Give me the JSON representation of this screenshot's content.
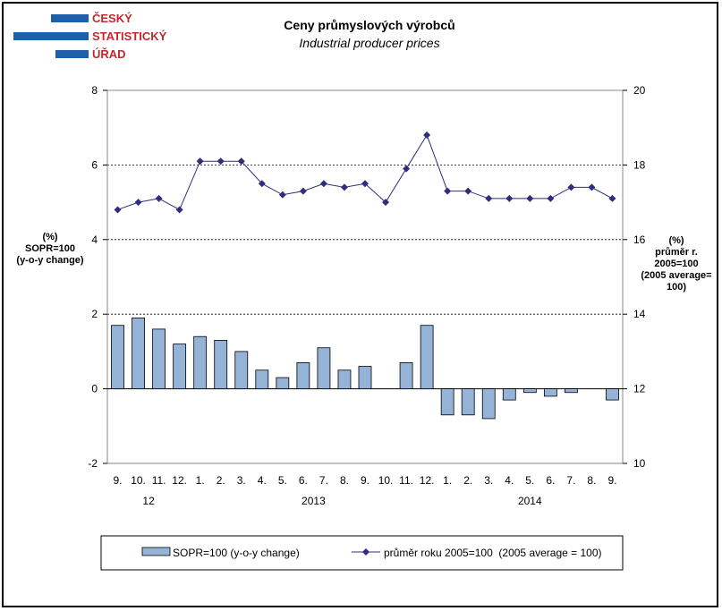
{
  "logo": {
    "line1": "ČESKÝ",
    "line2": "STATISTICKÝ",
    "line3": "ÚŘAD",
    "bar_color": "#1f5ea8",
    "text_color": "#c0282d"
  },
  "chart_data": {
    "type": "bar+line",
    "title": "Ceny průmyslových výrobců",
    "subtitle": "Industrial producer prices",
    "left_axis_label": [
      "(%)",
      "SOPR=100",
      "(y-o-y change)"
    ],
    "right_axis_label": [
      "(%)",
      "průměr r.",
      "2005=100",
      "(2005 average=",
      "100)"
    ],
    "categories": [
      "9.",
      "10.",
      "11.",
      "12.",
      "1.",
      "2.",
      "3.",
      "4.",
      "5.",
      "6.",
      "7.",
      "8.",
      "9.",
      "10.",
      "11.",
      "12.",
      "1.",
      "2.",
      "3.",
      "4.",
      "5.",
      "6.",
      "7.",
      "8.",
      "9."
    ],
    "year_labels": [
      {
        "label": "12",
        "at_index": 1.5
      },
      {
        "label": "2013",
        "at_index": 9.5
      },
      {
        "label": "2014",
        "at_index": 20
      }
    ],
    "left_axis": {
      "min": -2,
      "max": 8,
      "ticks": [
        -2,
        0,
        2,
        4,
        6,
        8
      ]
    },
    "right_axis": {
      "min": 10,
      "max": 20,
      "ticks": [
        10,
        12,
        14,
        16,
        18,
        20
      ]
    },
    "gridlines_dashed_at_left": [
      2,
      4,
      6
    ],
    "series": [
      {
        "name": "SOPR=100 (y-o-y change)",
        "kind": "bar",
        "axis": "left",
        "color": "#95b3d7",
        "values": [
          1.7,
          1.9,
          1.6,
          1.2,
          1.4,
          1.3,
          1.0,
          0.5,
          0.3,
          0.7,
          1.1,
          0.5,
          0.6,
          0.0,
          0.7,
          1.7,
          -0.7,
          -0.7,
          -0.8,
          -0.3,
          -0.1,
          -0.2,
          -0.1,
          0.0,
          -0.3
        ]
      },
      {
        "name": "průměr roku 2005=100  (2005 average = 100)",
        "kind": "line",
        "axis": "right",
        "color": "#2e2e7a",
        "values": [
          16.8,
          17.0,
          17.1,
          16.8,
          18.1,
          18.1,
          18.1,
          17.5,
          17.2,
          17.3,
          17.5,
          17.4,
          17.5,
          17.0,
          17.9,
          18.8,
          17.3,
          17.3,
          17.1,
          17.1,
          17.1,
          17.1,
          17.4,
          17.4,
          17.1
        ]
      }
    ],
    "legend_position": "bottom"
  }
}
